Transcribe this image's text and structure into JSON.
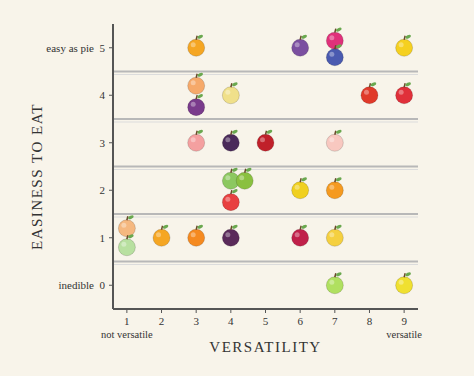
{
  "chart_data": {
    "type": "scatter",
    "x_label": "VERSATILITY",
    "y_label": "EASINESS TO EAT",
    "x": [
      3,
      6,
      7,
      7,
      9,
      3,
      3,
      4,
      8,
      9,
      3,
      4,
      5,
      7,
      4,
      4.4,
      4,
      6,
      7,
      1,
      1,
      2,
      3,
      4,
      6,
      7,
      7,
      9
    ],
    "values": [
      5,
      5,
      5.15,
      4.8,
      5,
      4.2,
      3.75,
      4,
      4,
      4,
      3,
      3,
      3,
      3,
      2.2,
      2.2,
      1.75,
      2,
      2,
      1.2,
      0.8,
      1,
      1,
      1,
      1,
      1,
      0,
      0
    ],
    "colors": [
      "#f5a623",
      "#7b4fa0",
      "#e0307a",
      "#4a5ab0",
      "#f5d020",
      "#f6a96a",
      "#7a3b8c",
      "#f0e08a",
      "#e03a2a",
      "#e0303a",
      "#f4a0a0",
      "#4a2a5a",
      "#c0202a",
      "#f8c8c0",
      "#8cc860",
      "#8ac040",
      "#e84040",
      "#f0d020",
      "#f59a20",
      "#f5b880",
      "#b8e0a0",
      "#f5a623",
      "#f58a20",
      "#5a2a5a",
      "#c0204a",
      "#f5d040",
      "#b0e060",
      "#f0e030"
    ],
    "xlim": [
      0.6,
      9.4
    ],
    "ylim": [
      -0.5,
      5.5
    ],
    "xticks": [
      1,
      2,
      3,
      4,
      5,
      6,
      7,
      8,
      9
    ],
    "yticks": [
      {
        "value": 0,
        "label": "inedible  0"
      },
      1,
      2,
      3,
      4,
      {
        "value": 5,
        "label": "easy as pie  5"
      }
    ],
    "annotations": [
      {
        "text": "not versatile",
        "x": 1
      },
      {
        "text": "versatile",
        "x": 9
      }
    ],
    "grid": true
  }
}
